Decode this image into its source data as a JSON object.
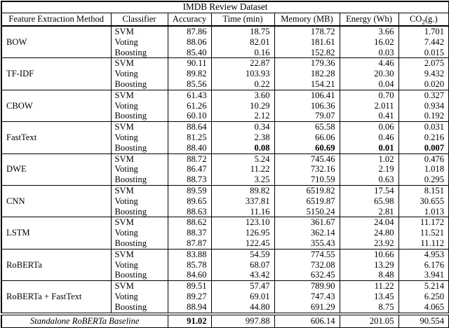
{
  "table": {
    "title": "IMDB Review Dataset",
    "columns": [
      "Feature Extraction Method",
      "Classifier",
      "Accuracy",
      "Time (min)",
      "Memory (MB)",
      "Energy (Wh)"
    ],
    "co2_header": {
      "prefix": "CO",
      "sub": "2",
      "suffix": "(g.)"
    },
    "groups": [
      {
        "method": "BOW",
        "rows": [
          {
            "classifier": "SVM",
            "accuracy": "87.86",
            "time": "18.75",
            "memory": "178.72",
            "energy": "3.66",
            "co2": "1.701"
          },
          {
            "classifier": "Voting",
            "accuracy": "88.06",
            "time": "82.01",
            "memory": "181.61",
            "energy": "16.02",
            "co2": "7.442"
          },
          {
            "classifier": "Boosting",
            "accuracy": "85.40",
            "time": "0.16",
            "memory": "152.82",
            "energy": "0.03",
            "co2": "0.015"
          }
        ]
      },
      {
        "method": "TF-IDF",
        "rows": [
          {
            "classifier": "SVM",
            "accuracy": "90.11",
            "time": "22.87",
            "memory": "179.36",
            "energy": "4.46",
            "co2": "2.075"
          },
          {
            "classifier": "Voting",
            "accuracy": "89.82",
            "time": "103.93",
            "memory": "182.28",
            "energy": "20.30",
            "co2": "9.432"
          },
          {
            "classifier": "Boosting",
            "accuracy": "85.56",
            "time": "0.22",
            "memory": "154.21",
            "energy": "0.04",
            "co2": "0.020"
          }
        ]
      },
      {
        "method": "CBOW",
        "rows": [
          {
            "classifier": "SVM",
            "accuracy": "61.43",
            "time": "3.60",
            "memory": "106.41",
            "energy": "0.70",
            "co2": "0.327"
          },
          {
            "classifier": "Voting",
            "accuracy": "61.26",
            "time": "10.29",
            "memory": "106.36",
            "energy": "2.011",
            "co2": "0.934"
          },
          {
            "classifier": "Boosting",
            "accuracy": "60.10",
            "time": "2.12",
            "memory": "79.07",
            "energy": "0.41",
            "co2": "0.192"
          }
        ]
      },
      {
        "method": "FastText",
        "rows": [
          {
            "classifier": "SVM",
            "accuracy": "88.64",
            "time": "0.34",
            "memory": "65.58",
            "energy": "0.06",
            "co2": "0.031"
          },
          {
            "classifier": "Voting",
            "accuracy": "81.25",
            "time": "2.38",
            "memory": "66.06",
            "energy": "0.46",
            "co2": "0.216"
          },
          {
            "classifier": "Boosting",
            "accuracy": "88.40",
            "time": "0.08",
            "memory": "60.69",
            "energy": "0.01",
            "co2": "0.007",
            "bold": [
              "time",
              "memory",
              "energy",
              "co2"
            ]
          }
        ]
      },
      {
        "method": "DWE",
        "rows": [
          {
            "classifier": "SVM",
            "accuracy": "88.72",
            "time": "5.24",
            "memory": "745.46",
            "energy": "1.02",
            "co2": "0.476"
          },
          {
            "classifier": "Voting",
            "accuracy": "86.47",
            "time": "11.22",
            "memory": "732.16",
            "energy": "2.19",
            "co2": "1.018"
          },
          {
            "classifier": "Boosting",
            "accuracy": "88.73",
            "time": "3.25",
            "memory": "710.59",
            "energy": "0.63",
            "co2": "0.295"
          }
        ]
      },
      {
        "method": "CNN",
        "rows": [
          {
            "classifier": "SVM",
            "accuracy": "89.59",
            "time": "89.82",
            "memory": "6519.82",
            "energy": "17.54",
            "co2": "8.151"
          },
          {
            "classifier": "Voting",
            "accuracy": "89.65",
            "time": "337.81",
            "memory": "6519.87",
            "energy": "65.98",
            "co2": "30.655"
          },
          {
            "classifier": "Boosting",
            "accuracy": "88.63",
            "time": "11.16",
            "memory": "5150.24",
            "energy": "2.81",
            "co2": "1.013"
          }
        ]
      },
      {
        "method": "LSTM",
        "rows": [
          {
            "classifier": "SVM",
            "accuracy": "88.62",
            "time": "123.10",
            "memory": "361.67",
            "energy": "24.04",
            "co2": "11.172"
          },
          {
            "classifier": "Voting",
            "accuracy": "88.37",
            "time": "126.95",
            "memory": "362.14",
            "energy": "24.80",
            "co2": "11.521"
          },
          {
            "classifier": "Boosting",
            "accuracy": "87.87",
            "time": "122.45",
            "memory": "355.43",
            "energy": "23.92",
            "co2": "11.112"
          }
        ]
      },
      {
        "method": "RoBERTa",
        "rows": [
          {
            "classifier": "SVM",
            "accuracy": "83.88",
            "time": "54.59",
            "memory": "774.55",
            "energy": "10.66",
            "co2": "4.953"
          },
          {
            "classifier": "Voting",
            "accuracy": "85.78",
            "time": "68.07",
            "memory": "732.08",
            "energy": "13.29",
            "co2": "6.176"
          },
          {
            "classifier": "Boosting",
            "accuracy": "84.60",
            "time": "43.42",
            "memory": "632.45",
            "energy": "8.48",
            "co2": "3.941"
          }
        ]
      },
      {
        "method": "RoBERTa + FastText",
        "rows": [
          {
            "classifier": "SVM",
            "accuracy": "89.51",
            "time": "57.47",
            "memory": "789.90",
            "energy": "11.22",
            "co2": "5.214"
          },
          {
            "classifier": "Voting",
            "accuracy": "89.27",
            "time": "69.01",
            "memory": "747.43",
            "energy": "13.45",
            "co2": "6.250"
          },
          {
            "classifier": "Boosting",
            "accuracy": "88.94",
            "time": "44.80",
            "memory": "691.29",
            "energy": "8.75",
            "co2": "4.065"
          }
        ]
      }
    ],
    "baseline": {
      "label": "Standalone RoBERTa Baseline",
      "accuracy": "91.02",
      "time": "997.88",
      "memory": "606.14",
      "energy": "201.05",
      "co2": "90.554",
      "bold": [
        "accuracy"
      ]
    }
  }
}
